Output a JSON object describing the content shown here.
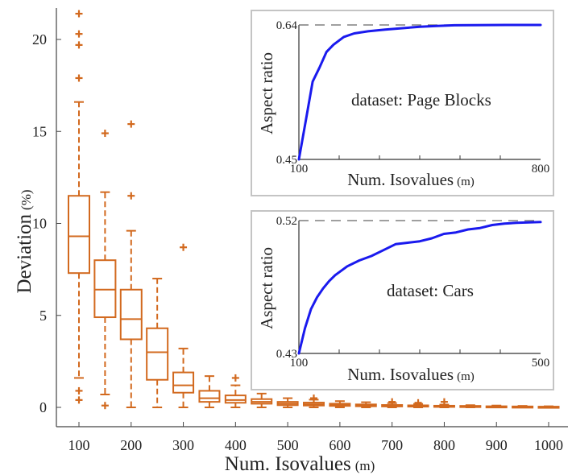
{
  "chart_data": [
    {
      "type": "boxplot",
      "xlabel": "Num. Isovalues",
      "xlabel_unit": "(m)",
      "ylabel": "Deviation",
      "ylabel_unit": "(%)",
      "ylim": [
        0,
        22
      ],
      "xlim": [
        50,
        1025
      ],
      "xticks": [
        100,
        200,
        300,
        400,
        500,
        600,
        700,
        800,
        900,
        1000
      ],
      "yticks": [
        0,
        5,
        10,
        15,
        20
      ],
      "color": "#d2691e",
      "boxes": [
        {
          "x": 100,
          "whislo": 1.6,
          "q1": 7.3,
          "med": 9.3,
          "q3": 11.5,
          "whishi": 16.6,
          "fliers": [
            0.4,
            0.9,
            17.9,
            19.7,
            20.3,
            21.4
          ]
        },
        {
          "x": 150,
          "whislo": 0.7,
          "q1": 4.9,
          "med": 6.4,
          "q3": 8.0,
          "whishi": 11.7,
          "fliers": [
            0.1,
            14.9
          ]
        },
        {
          "x": 200,
          "whislo": 0.0,
          "q1": 3.7,
          "med": 4.8,
          "q3": 6.4,
          "whishi": 9.6,
          "fliers": [
            11.5,
            15.4
          ]
        },
        {
          "x": 250,
          "whislo": 0.0,
          "q1": 1.5,
          "med": 3.0,
          "q3": 4.3,
          "whishi": 7.0,
          "fliers": []
        },
        {
          "x": 300,
          "whislo": 0.0,
          "q1": 0.8,
          "med": 1.2,
          "q3": 1.9,
          "whishi": 3.2,
          "fliers": [
            8.7
          ]
        },
        {
          "x": 350,
          "whislo": 0.0,
          "q1": 0.3,
          "med": 0.5,
          "q3": 0.9,
          "whishi": 1.7,
          "fliers": []
        },
        {
          "x": 400,
          "whislo": 0.0,
          "q1": 0.25,
          "med": 0.4,
          "q3": 0.65,
          "whishi": 1.2,
          "fliers": [
            1.6
          ]
        },
        {
          "x": 450,
          "whislo": 0.0,
          "q1": 0.2,
          "med": 0.3,
          "q3": 0.45,
          "whishi": 0.75,
          "fliers": []
        },
        {
          "x": 500,
          "whislo": 0.0,
          "q1": 0.12,
          "med": 0.2,
          "q3": 0.3,
          "whishi": 0.5,
          "fliers": []
        },
        {
          "x": 550,
          "whislo": 0.0,
          "q1": 0.1,
          "med": 0.17,
          "q3": 0.26,
          "whishi": 0.42,
          "fliers": [
            0.5
          ]
        },
        {
          "x": 600,
          "whislo": 0.0,
          "q1": 0.08,
          "med": 0.13,
          "q3": 0.2,
          "whishi": 0.34,
          "fliers": []
        },
        {
          "x": 650,
          "whislo": 0.0,
          "q1": 0.06,
          "med": 0.1,
          "q3": 0.16,
          "whishi": 0.28,
          "fliers": []
        },
        {
          "x": 700,
          "whislo": 0.0,
          "q1": 0.05,
          "med": 0.08,
          "q3": 0.13,
          "whishi": 0.23,
          "fliers": [
            0.3
          ]
        },
        {
          "x": 750,
          "whislo": 0.0,
          "q1": 0.04,
          "med": 0.07,
          "q3": 0.11,
          "whishi": 0.19,
          "fliers": [
            0.25
          ]
        },
        {
          "x": 800,
          "whislo": 0.0,
          "q1": 0.03,
          "med": 0.06,
          "q3": 0.09,
          "whishi": 0.15,
          "fliers": [
            0.3
          ]
        },
        {
          "x": 850,
          "whislo": 0.0,
          "q1": 0.03,
          "med": 0.05,
          "q3": 0.08,
          "whishi": 0.12,
          "fliers": []
        },
        {
          "x": 900,
          "whislo": 0.0,
          "q1": 0.02,
          "med": 0.04,
          "q3": 0.06,
          "whishi": 0.1,
          "fliers": []
        },
        {
          "x": 950,
          "whislo": 0.0,
          "q1": 0.02,
          "med": 0.03,
          "q3": 0.05,
          "whishi": 0.08,
          "fliers": []
        },
        {
          "x": 1000,
          "whislo": 0.0,
          "q1": 0.01,
          "med": 0.02,
          "q3": 0.04,
          "whishi": 0.06,
          "fliers": []
        }
      ]
    },
    {
      "type": "line",
      "annotation": "dataset: Page Blocks",
      "xlabel": "Num. Isovalues",
      "xlabel_unit": "(m)",
      "ylabel": "Aspect ratio",
      "xlim": [
        100,
        800
      ],
      "ylim": [
        0.45,
        0.64
      ],
      "xticks": [
        "100",
        "800"
      ],
      "yticks": [
        "0.45",
        "0.64"
      ],
      "reference_line": 0.64,
      "color": "#1a1aee",
      "x": [
        100,
        120,
        140,
        160,
        180,
        200,
        230,
        260,
        300,
        350,
        400,
        450,
        500,
        550,
        600,
        650,
        700,
        750,
        800
      ],
      "y": [
        0.45,
        0.505,
        0.56,
        0.58,
        0.602,
        0.612,
        0.623,
        0.628,
        0.631,
        0.6335,
        0.6355,
        0.6375,
        0.6385,
        0.6395,
        0.6398,
        0.6399,
        0.64,
        0.64,
        0.64
      ]
    },
    {
      "type": "line",
      "annotation": "dataset: Cars",
      "xlabel": "Num. Isovalues",
      "xlabel_unit": "(m)",
      "ylabel": "Aspect ratio",
      "xlim": [
        100,
        500
      ],
      "ylim": [
        0.43,
        0.52
      ],
      "xticks": [
        "100",
        "500"
      ],
      "yticks": [
        "0.43",
        "0.52"
      ],
      "reference_line": 0.52,
      "color": "#1a1aee",
      "x": [
        100,
        110,
        120,
        130,
        140,
        150,
        160,
        180,
        200,
        220,
        240,
        260,
        280,
        300,
        320,
        340,
        360,
        380,
        400,
        420,
        440,
        460,
        480,
        500
      ],
      "y": [
        0.43,
        0.447,
        0.46,
        0.468,
        0.474,
        0.479,
        0.483,
        0.489,
        0.493,
        0.496,
        0.5,
        0.504,
        0.505,
        0.506,
        0.508,
        0.511,
        0.512,
        0.514,
        0.515,
        0.517,
        0.518,
        0.5185,
        0.5188,
        0.519
      ]
    }
  ]
}
